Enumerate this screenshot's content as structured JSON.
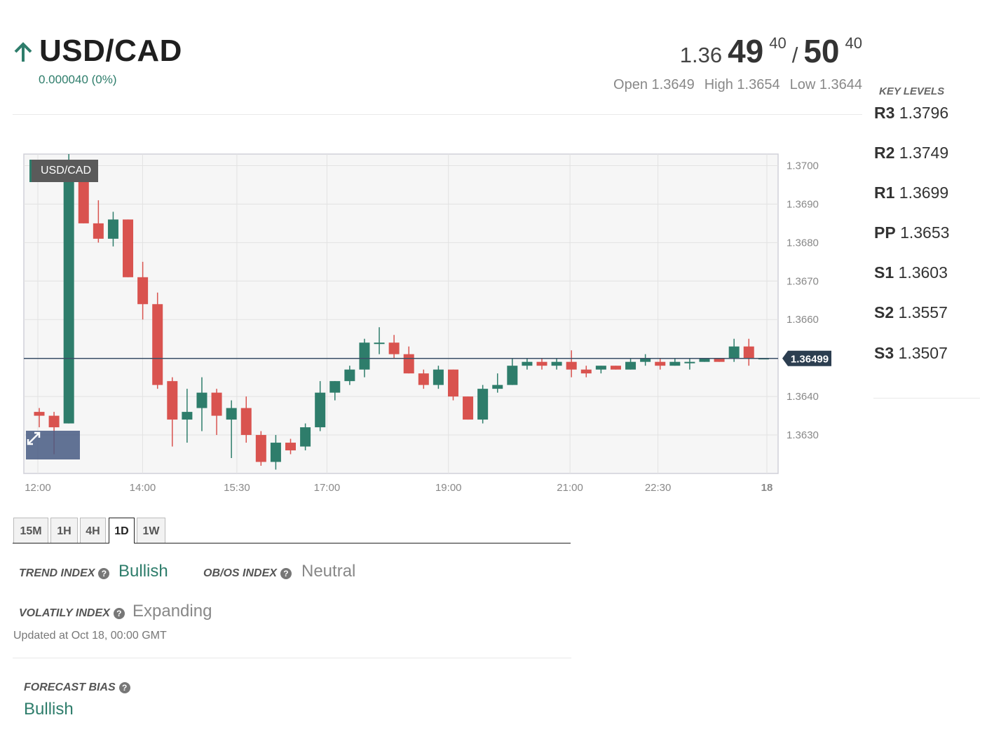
{
  "instrument": {
    "title": "USD/CAD",
    "change": "0.000040 (0%)",
    "direction": "up",
    "quote": {
      "bid_prefix": "1.36",
      "bid_big": "49",
      "bid_sup": "40",
      "slash": "/",
      "ask_big": "50",
      "ask_sup": "40"
    },
    "open": "Open 1.3649",
    "high": "High 1.3654",
    "low": "Low 1.3644"
  },
  "chart": {
    "label": "USD/CAD",
    "current_price_label": "1.36499",
    "expand_icon": "expand-arrows-icon"
  },
  "chart_data": {
    "type": "candlestick",
    "title": "USD/CAD",
    "y_ticks": [
      "1.3700",
      "1.3690",
      "1.3680",
      "1.3670",
      "1.3660",
      "1.3640",
      "1.3630"
    ],
    "x_ticks": [
      "12:00",
      "14:00",
      "15:30",
      "17:00",
      "19:00",
      "21:00",
      "22:30",
      "18"
    ],
    "ylim": [
      1.362,
      1.3703
    ],
    "current_price": 1.36499,
    "grid": true,
    "up_color": "#2e7d6b",
    "down_color": "#d9534f",
    "candles": [
      {
        "t": 0.0,
        "o": 1.3636,
        "h": 1.3637,
        "l": 1.3632,
        "c": 1.3635
      },
      {
        "t": 0.25,
        "o": 1.3635,
        "h": 1.3636,
        "l": 1.3625,
        "c": 1.3632
      },
      {
        "t": 0.5,
        "o": 1.3633,
        "h": 1.3703,
        "l": 1.3633,
        "c": 1.3699
      },
      {
        "t": 0.75,
        "o": 1.3698,
        "h": 1.3698,
        "l": 1.3685,
        "c": 1.3685
      },
      {
        "t": 1.0,
        "o": 1.3685,
        "h": 1.3691,
        "l": 1.368,
        "c": 1.3681
      },
      {
        "t": 1.25,
        "o": 1.3681,
        "h": 1.3688,
        "l": 1.3679,
        "c": 1.3686
      },
      {
        "t": 1.5,
        "o": 1.3686,
        "h": 1.3686,
        "l": 1.3671,
        "c": 1.3671
      },
      {
        "t": 1.75,
        "o": 1.3671,
        "h": 1.3675,
        "l": 1.366,
        "c": 1.3664
      },
      {
        "t": 2.0,
        "o": 1.3664,
        "h": 1.3667,
        "l": 1.3642,
        "c": 1.3643
      },
      {
        "t": 2.25,
        "o": 1.3644,
        "h": 1.3645,
        "l": 1.3627,
        "c": 1.3634
      },
      {
        "t": 2.5,
        "o": 1.3634,
        "h": 1.3642,
        "l": 1.3628,
        "c": 1.3636
      },
      {
        "t": 2.75,
        "o": 1.3637,
        "h": 1.3645,
        "l": 1.3631,
        "c": 1.3641
      },
      {
        "t": 3.0,
        "o": 1.3641,
        "h": 1.3642,
        "l": 1.363,
        "c": 1.3635
      },
      {
        "t": 3.25,
        "o": 1.3634,
        "h": 1.3639,
        "l": 1.3624,
        "c": 1.3637
      },
      {
        "t": 3.5,
        "o": 1.3637,
        "h": 1.364,
        "l": 1.3628,
        "c": 1.363
      },
      {
        "t": 3.75,
        "o": 1.363,
        "h": 1.3631,
        "l": 1.3622,
        "c": 1.3623
      },
      {
        "t": 4.0,
        "o": 1.3623,
        "h": 1.363,
        "l": 1.3621,
        "c": 1.3628
      },
      {
        "t": 4.25,
        "o": 1.3628,
        "h": 1.3629,
        "l": 1.3625,
        "c": 1.3626
      },
      {
        "t": 4.5,
        "o": 1.3627,
        "h": 1.3633,
        "l": 1.3626,
        "c": 1.3632
      },
      {
        "t": 4.75,
        "o": 1.3632,
        "h": 1.3644,
        "l": 1.3631,
        "c": 1.3641
      },
      {
        "t": 5.0,
        "o": 1.3641,
        "h": 1.3644,
        "l": 1.3639,
        "c": 1.3644
      },
      {
        "t": 5.25,
        "o": 1.3644,
        "h": 1.3648,
        "l": 1.3643,
        "c": 1.3647
      },
      {
        "t": 5.5,
        "o": 1.3647,
        "h": 1.3655,
        "l": 1.3645,
        "c": 1.3654
      },
      {
        "t": 5.75,
        "o": 1.3654,
        "h": 1.3658,
        "l": 1.3651,
        "c": 1.3654
      },
      {
        "t": 6.0,
        "o": 1.3654,
        "h": 1.3656,
        "l": 1.365,
        "c": 1.3651
      },
      {
        "t": 6.25,
        "o": 1.3651,
        "h": 1.3653,
        "l": 1.3646,
        "c": 1.3646
      },
      {
        "t": 6.5,
        "o": 1.3646,
        "h": 1.3647,
        "l": 1.3642,
        "c": 1.3643
      },
      {
        "t": 6.75,
        "o": 1.3643,
        "h": 1.3648,
        "l": 1.3642,
        "c": 1.3647
      },
      {
        "t": 7.0,
        "o": 1.3647,
        "h": 1.3647,
        "l": 1.3639,
        "c": 1.364
      },
      {
        "t": 7.25,
        "o": 1.364,
        "h": 1.364,
        "l": 1.3634,
        "c": 1.3634
      },
      {
        "t": 7.5,
        "o": 1.3634,
        "h": 1.3643,
        "l": 1.3633,
        "c": 1.3642
      },
      {
        "t": 7.75,
        "o": 1.3642,
        "h": 1.3646,
        "l": 1.3641,
        "c": 1.3643
      },
      {
        "t": 8.0,
        "o": 1.3643,
        "h": 1.365,
        "l": 1.3643,
        "c": 1.3648
      },
      {
        "t": 8.25,
        "o": 1.3648,
        "h": 1.365,
        "l": 1.3647,
        "c": 1.3649
      },
      {
        "t": 8.5,
        "o": 1.3649,
        "h": 1.365,
        "l": 1.3647,
        "c": 1.3648
      },
      {
        "t": 8.75,
        "o": 1.3648,
        "h": 1.365,
        "l": 1.3647,
        "c": 1.3649
      },
      {
        "t": 9.0,
        "o": 1.3649,
        "h": 1.3652,
        "l": 1.3645,
        "c": 1.3647
      },
      {
        "t": 9.25,
        "o": 1.3647,
        "h": 1.3648,
        "l": 1.3645,
        "c": 1.3646
      },
      {
        "t": 9.5,
        "o": 1.3647,
        "h": 1.3648,
        "l": 1.3646,
        "c": 1.3648
      },
      {
        "t": 9.75,
        "o": 1.3648,
        "h": 1.3648,
        "l": 1.3647,
        "c": 1.3647
      },
      {
        "t": 10.0,
        "o": 1.3647,
        "h": 1.365,
        "l": 1.3647,
        "c": 1.3649
      },
      {
        "t": 10.25,
        "o": 1.3649,
        "h": 1.3651,
        "l": 1.3648,
        "c": 1.365
      },
      {
        "t": 10.5,
        "o": 1.3649,
        "h": 1.365,
        "l": 1.3647,
        "c": 1.3648
      },
      {
        "t": 10.75,
        "o": 1.3648,
        "h": 1.365,
        "l": 1.3648,
        "c": 1.3649
      },
      {
        "t": 11.0,
        "o": 1.3649,
        "h": 1.365,
        "l": 1.3647,
        "c": 1.3649
      },
      {
        "t": 11.25,
        "o": 1.3649,
        "h": 1.365,
        "l": 1.3649,
        "c": 1.365
      },
      {
        "t": 11.5,
        "o": 1.365,
        "h": 1.365,
        "l": 1.3649,
        "c": 1.3649
      },
      {
        "t": 11.75,
        "o": 1.365,
        "h": 1.3655,
        "l": 1.3649,
        "c": 1.3653
      },
      {
        "t": 12.0,
        "o": 1.3653,
        "h": 1.3655,
        "l": 1.3648,
        "c": 1.365
      },
      {
        "t": 12.25,
        "o": 1.365,
        "h": 1.365,
        "l": 1.365,
        "c": 1.365
      }
    ]
  },
  "timeframes": [
    "15M",
    "1H",
    "4H",
    "1D",
    "1W"
  ],
  "active_timeframe": "1D",
  "indices": {
    "trend_label": "TREND INDEX",
    "trend_value": "Bullish",
    "obos_label": "OB/OS INDEX",
    "obos_value": "Neutral",
    "volatility_label": "VOLATILY INDEX",
    "volatility_value": "Expanding",
    "help_glyph": "?"
  },
  "updated": "Updated at Oct 18, 00:00 GMT",
  "forecast": {
    "label": "FORECAST BIAS",
    "value": "Bullish"
  },
  "key_levels": {
    "title": "KEY LEVELS",
    "items": [
      {
        "name": "R3",
        "value": "1.3796"
      },
      {
        "name": "R2",
        "value": "1.3749"
      },
      {
        "name": "R1",
        "value": "1.3699"
      },
      {
        "name": "PP",
        "value": "1.3653"
      },
      {
        "name": "S1",
        "value": "1.3603"
      },
      {
        "name": "S2",
        "value": "1.3557"
      },
      {
        "name": "S3",
        "value": "1.3507"
      }
    ]
  },
  "colors": {
    "accent_green": "#2e7d6b",
    "down_red": "#d9534f",
    "price_tag": "#2c3e50"
  }
}
